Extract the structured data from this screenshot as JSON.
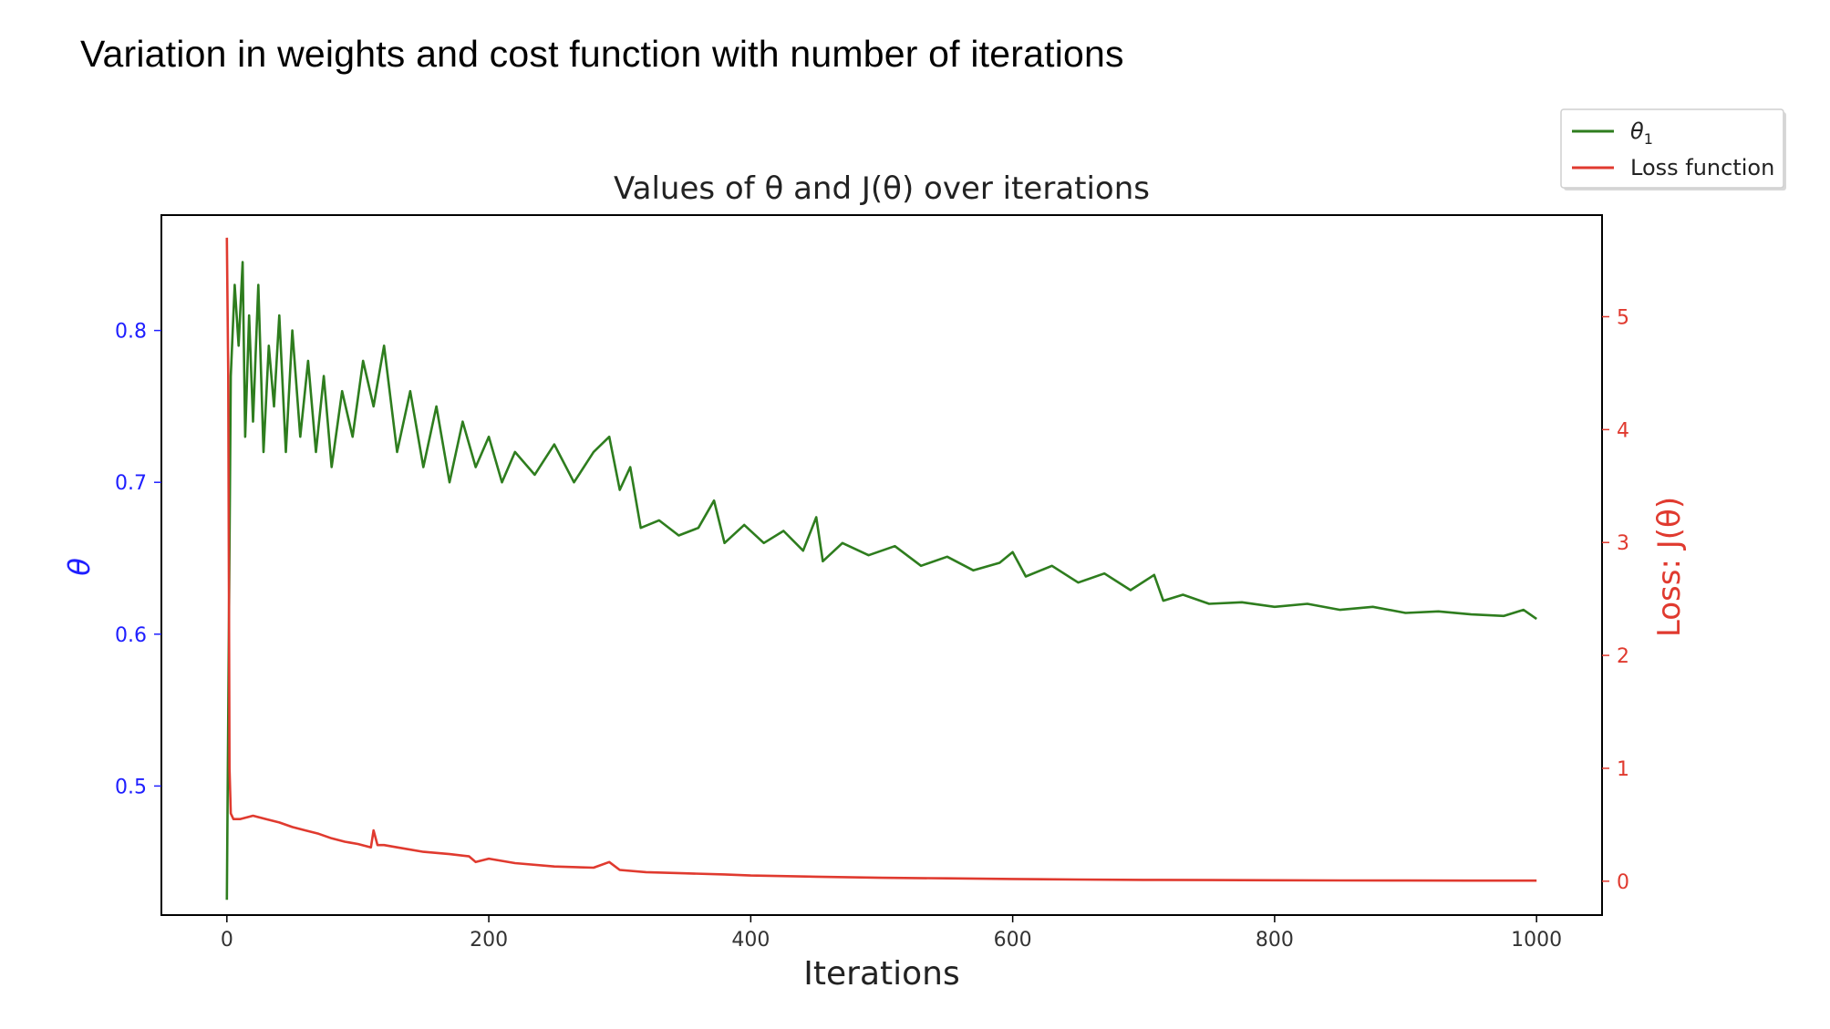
{
  "page": {
    "title": "Variation in weights and cost function with number of iterations"
  },
  "chart_data": {
    "type": "line",
    "title": "Values of θ and J(θ) over iterations",
    "xlabel": "Iterations",
    "ylabel_left": "θ",
    "ylabel_right": "Loss: J(θ)",
    "xlim": [
      -50,
      1050
    ],
    "ylim_left": [
      0.415,
      0.876
    ],
    "ylim_right": [
      -0.3,
      5.9
    ],
    "x_ticks": [
      0,
      200,
      400,
      600,
      800,
      1000
    ],
    "y_left_ticks": [
      0.5,
      0.6,
      0.7,
      0.8
    ],
    "y_right_ticks": [
      0,
      1,
      2,
      3,
      4,
      5
    ],
    "grid": false,
    "legend": {
      "position": "outside top-right",
      "entries": [
        {
          "label": "θ",
          "sub": "1",
          "color": "#2e7d1e"
        },
        {
          "label": "Loss function",
          "color": "#e03a2f"
        }
      ]
    },
    "colors": {
      "left_axis": "#1f1fff",
      "right_axis": "#e03a2f"
    },
    "series": [
      {
        "name": "θ1",
        "axis": "left",
        "color": "#2e7d1e",
        "x": [
          0,
          3,
          6,
          9,
          12,
          14,
          17,
          20,
          24,
          28,
          32,
          36,
          40,
          45,
          50,
          56,
          62,
          68,
          74,
          80,
          88,
          96,
          104,
          112,
          120,
          130,
          140,
          150,
          160,
          170,
          180,
          190,
          200,
          210,
          220,
          235,
          250,
          265,
          280,
          292,
          300,
          308,
          316,
          330,
          345,
          360,
          372,
          380,
          395,
          410,
          425,
          440,
          450,
          455,
          470,
          490,
          510,
          530,
          550,
          570,
          590,
          600,
          610,
          630,
          650,
          670,
          690,
          708,
          715,
          730,
          750,
          775,
          800,
          825,
          850,
          875,
          900,
          925,
          950,
          975,
          990,
          1000
        ],
        "y": [
          0.425,
          0.77,
          0.83,
          0.79,
          0.845,
          0.73,
          0.81,
          0.74,
          0.83,
          0.72,
          0.79,
          0.75,
          0.81,
          0.72,
          0.8,
          0.73,
          0.78,
          0.72,
          0.77,
          0.71,
          0.76,
          0.73,
          0.78,
          0.75,
          0.79,
          0.72,
          0.76,
          0.71,
          0.75,
          0.7,
          0.74,
          0.71,
          0.73,
          0.7,
          0.72,
          0.705,
          0.725,
          0.7,
          0.72,
          0.73,
          0.695,
          0.71,
          0.67,
          0.675,
          0.665,
          0.67,
          0.688,
          0.66,
          0.672,
          0.66,
          0.668,
          0.655,
          0.677,
          0.648,
          0.66,
          0.652,
          0.658,
          0.645,
          0.651,
          0.642,
          0.647,
          0.654,
          0.638,
          0.645,
          0.634,
          0.64,
          0.629,
          0.639,
          0.622,
          0.626,
          0.62,
          0.621,
          0.618,
          0.62,
          0.616,
          0.618,
          0.614,
          0.615,
          0.613,
          0.612,
          0.616,
          0.61
        ]
      },
      {
        "name": "Loss function",
        "axis": "right",
        "color": "#e03a2f",
        "x": [
          0,
          1,
          2,
          3,
          5,
          10,
          20,
          30,
          40,
          50,
          60,
          70,
          80,
          90,
          100,
          110,
          112,
          115,
          120,
          130,
          150,
          170,
          185,
          190,
          200,
          220,
          250,
          280,
          292,
          300,
          320,
          350,
          380,
          400,
          450,
          500,
          550,
          600,
          650,
          700,
          750,
          800,
          850,
          900,
          950,
          1000
        ],
        "y": [
          5.7,
          4.5,
          1.0,
          0.6,
          0.55,
          0.55,
          0.58,
          0.55,
          0.52,
          0.48,
          0.45,
          0.42,
          0.38,
          0.35,
          0.33,
          0.3,
          0.45,
          0.32,
          0.32,
          0.3,
          0.26,
          0.24,
          0.22,
          0.17,
          0.2,
          0.16,
          0.13,
          0.12,
          0.17,
          0.1,
          0.08,
          0.07,
          0.06,
          0.05,
          0.04,
          0.03,
          0.025,
          0.02,
          0.015,
          0.012,
          0.01,
          0.008,
          0.007,
          0.006,
          0.005,
          0.005
        ]
      }
    ]
  }
}
